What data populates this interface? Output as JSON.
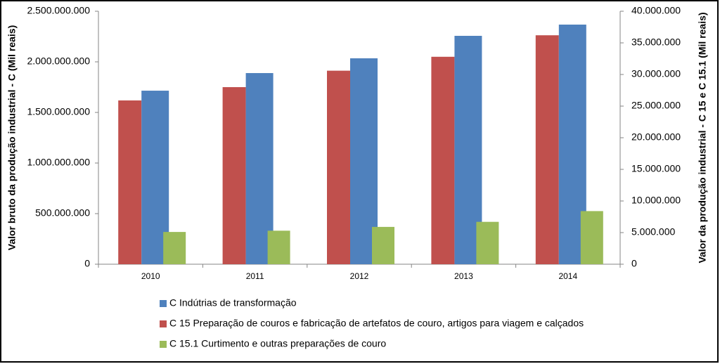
{
  "chart_data": {
    "type": "bar",
    "categories": [
      "2010",
      "2011",
      "2012",
      "2013",
      "2014"
    ],
    "y_label": "Valor bruto da produção industrial - C (Mil reais)",
    "y2_label": "Valor da produção industrial - C 15 e C 15.1 (Mil reais)",
    "ylim": [
      0,
      2500000000
    ],
    "yticks": [
      0,
      {
        "value": 500000000,
        "label": "500.000.000"
      },
      {
        "value": 1000000000,
        "label": "1.000.000.000"
      },
      {
        "value": 1500000000,
        "label": "1.500.000.000"
      },
      {
        "value": 2000000000,
        "label": "2.000.000.000"
      },
      {
        "value": 2500000000,
        "label": "2.500.000.000"
      }
    ],
    "y2lim": [
      0,
      40000000
    ],
    "y2ticks": [
      0,
      {
        "value": 5000000,
        "label": "5.000.000"
      },
      {
        "value": 10000000,
        "label": "10.000.000"
      },
      {
        "value": 15000000,
        "label": "15.000.000"
      },
      {
        "value": 20000000,
        "label": "20.000.000"
      },
      {
        "value": 25000000,
        "label": "25.000.000"
      },
      {
        "value": 30000000,
        "label": "30.000.000"
      },
      {
        "value": 35000000,
        "label": "35.000.000"
      },
      {
        "value": 40000000,
        "label": "40.000.000"
      }
    ],
    "series": [
      {
        "name": "C Indútrias de transformação",
        "color": "#4f81bd",
        "axis": "y",
        "values": [
          1715000000,
          1889000000,
          2035000000,
          2257000000,
          2368000000
        ]
      },
      {
        "name": "C 15 Preparação de couros e fabricação de artefatos de couro, artigos para viagem e calçados",
        "color": "#c0504d",
        "axis": "y2",
        "values": [
          25900000,
          28000000,
          30600000,
          32800000,
          36200000
        ]
      },
      {
        "name": "C 15.1 Curtimento e outras preparações de couro",
        "color": "#9bbb59",
        "axis": "y2",
        "values": [
          5100000,
          5300000,
          5900000,
          6700000,
          8400000
        ]
      }
    ]
  }
}
